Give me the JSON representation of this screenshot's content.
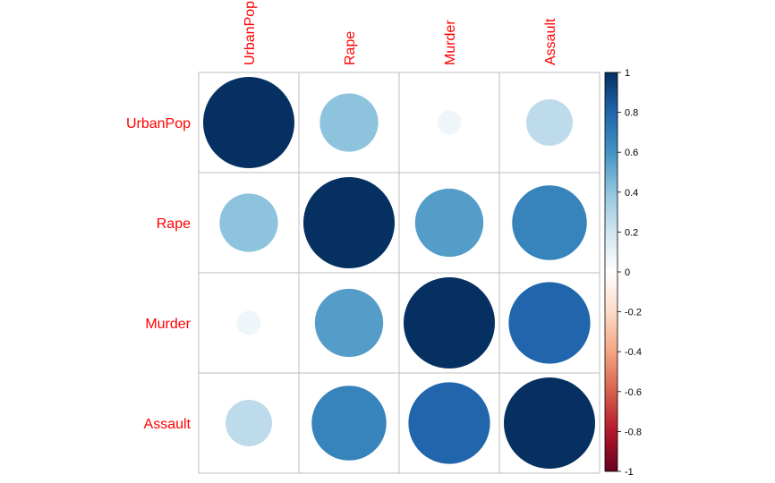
{
  "chart_data": {
    "type": "heatmap",
    "variables": [
      "UrbanPop",
      "Rape",
      "Murder",
      "Assault"
    ],
    "matrix": [
      [
        1.0,
        0.41,
        0.07,
        0.26
      ],
      [
        0.41,
        1.0,
        0.56,
        0.67
      ],
      [
        0.07,
        0.56,
        1.0,
        0.8
      ],
      [
        0.26,
        0.67,
        0.8,
        1.0
      ]
    ],
    "colorbar_ticks": [
      "1",
      "0.8",
      "0.6",
      "0.4",
      "0.2",
      "0",
      "-0.2",
      "-0.4",
      "-0.6",
      "-0.8",
      "-1"
    ],
    "colorbar_range": [
      -1,
      1
    ],
    "label_color": "#ff0000",
    "colors": {
      "strong_positive": "#053061",
      "zero": "#ffffff",
      "strong_negative": "#67001f",
      "grid": "#bebebe"
    }
  }
}
